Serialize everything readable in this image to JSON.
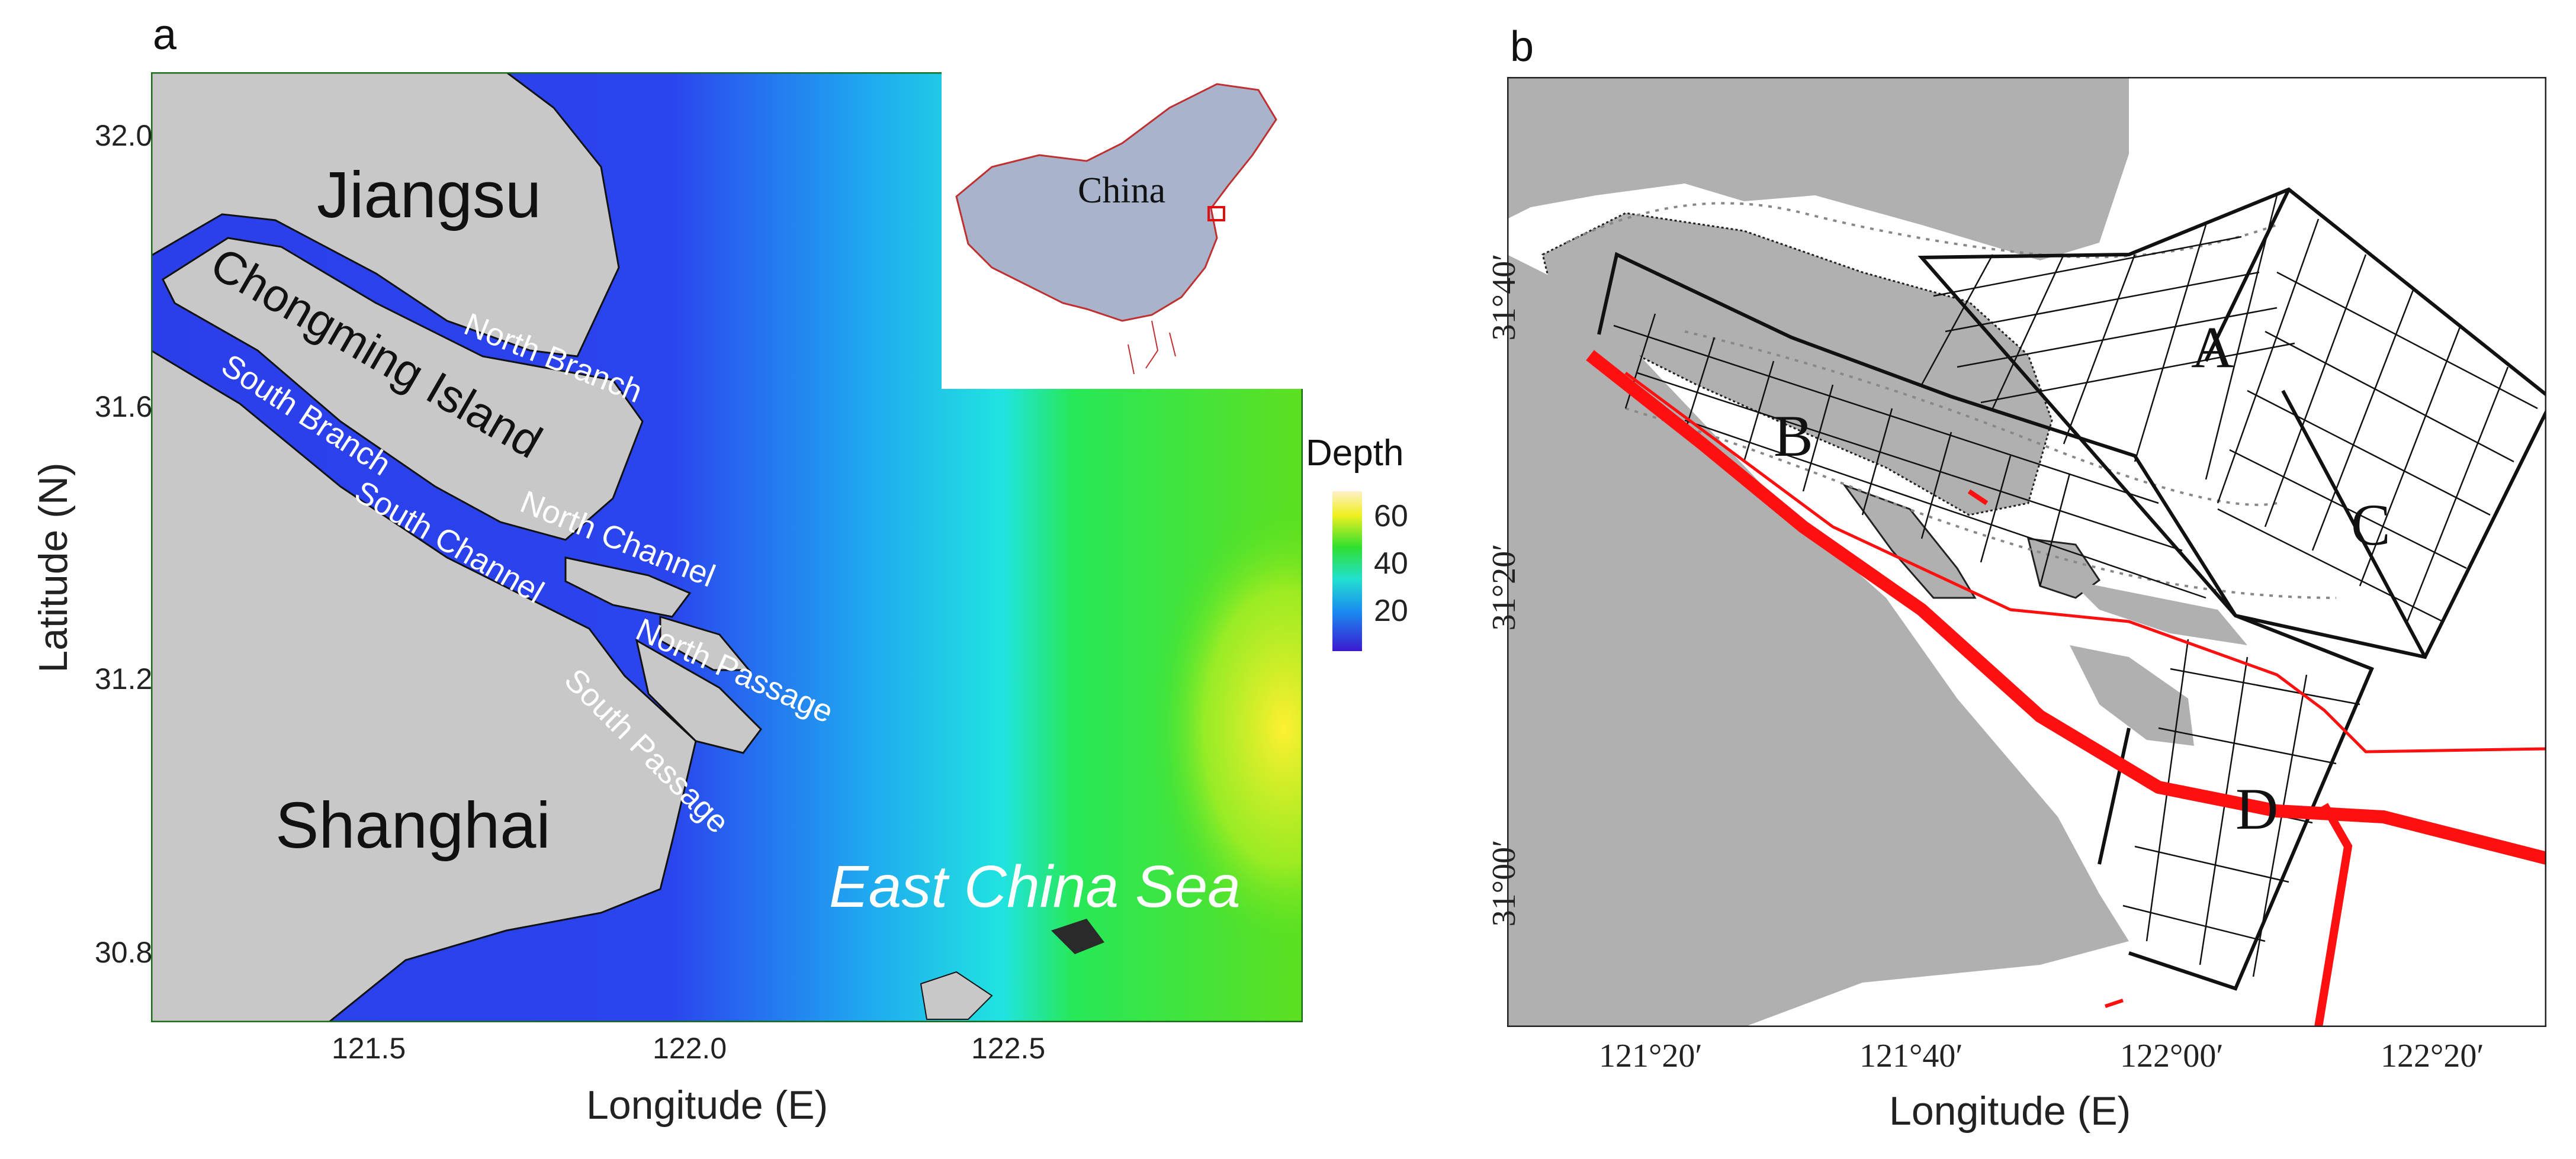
{
  "panel_a": {
    "letter": "a",
    "xlabel": "Longitude (E)",
    "ylabel": "Latitude (N)",
    "x_ticks": [
      "121.5",
      "122.0",
      "122.5"
    ],
    "y_ticks": [
      "32.0",
      "31.6",
      "31.2",
      "30.8"
    ],
    "labels": {
      "jiangsu": "Jiangsu",
      "chongming": "Chongming Island",
      "shanghai": "Shanghai",
      "north_branch": "North Branch",
      "south_branch": "South Branch",
      "north_channel": "North Channel",
      "south_channel": "South Channel",
      "north_passage": "North Passage",
      "south_passage": "South Passage",
      "sea": "East China Sea"
    },
    "inset_label": "China",
    "legend": {
      "title": "Depth",
      "ticks": [
        "60",
        "40",
        "20"
      ]
    },
    "colors": {
      "land": "#c8c8c8",
      "shallow": "#2a3ee8",
      "mid": "#22c8e8",
      "deep": "#35e020",
      "deepest": "#fff020"
    }
  },
  "panel_b": {
    "letter": "b",
    "xlabel": "Longitude (E)",
    "x_ticks": [
      "121°20′",
      "121°40′",
      "122°00′",
      "122°20′"
    ],
    "y_ticks": [
      "31°40′",
      "31°20′",
      "31°00′"
    ],
    "zones": [
      "A",
      "B",
      "C",
      "D"
    ],
    "colors": {
      "land": "#b0b0b0",
      "route": "#ff1010",
      "grid": "#111111"
    }
  }
}
